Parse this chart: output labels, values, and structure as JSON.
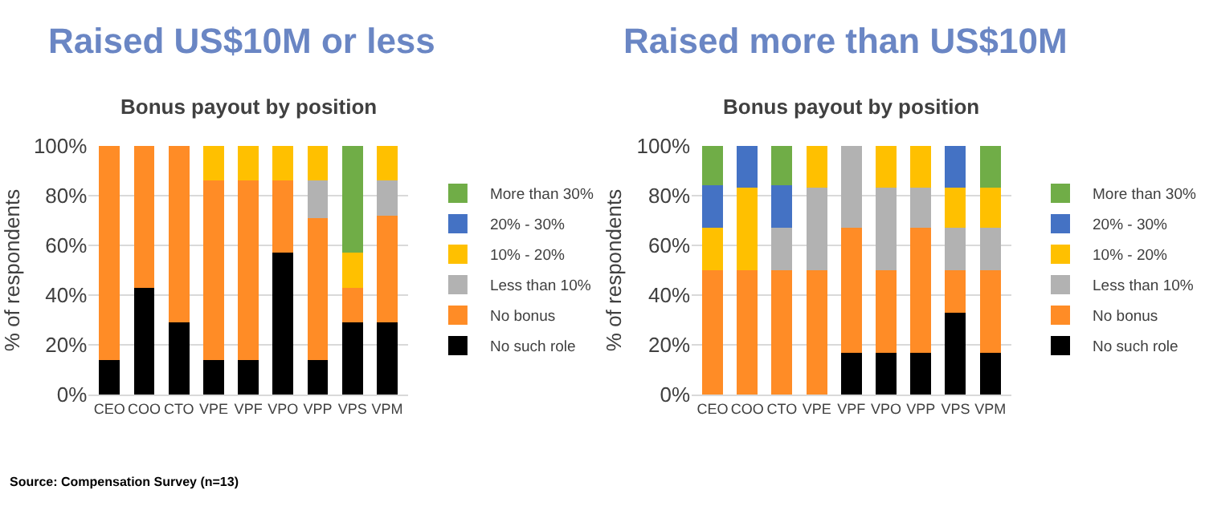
{
  "chart_data": [
    {
      "type": "bar",
      "title": "Raised US$10M or less",
      "subtitle": "Bonus payout by position",
      "ylabel": "% of respondents",
      "stacked": true,
      "legend": "right",
      "grid": "y",
      "categories": [
        "CEO",
        "COO",
        "CTO",
        "VPE",
        "VPF",
        "VPO",
        "VPP",
        "VPS",
        "VPM"
      ],
      "ylim": [
        0,
        100
      ],
      "yticks": [
        {
          "value": 0,
          "label": "0%"
        },
        {
          "value": 20,
          "label": "20%"
        },
        {
          "value": 40,
          "label": "40%"
        },
        {
          "value": 60,
          "label": "60%"
        },
        {
          "value": 80,
          "label": "80%"
        },
        {
          "value": 100,
          "label": "100%"
        }
      ],
      "series": [
        {
          "name": "No such role",
          "color": "#000000",
          "values": [
            14,
            43,
            29,
            14,
            14,
            57,
            14,
            29,
            29
          ]
        },
        {
          "name": "No bonus",
          "color": "#ff8c26",
          "values": [
            86,
            57,
            71,
            72,
            72,
            29,
            57,
            14,
            43
          ]
        },
        {
          "name": "Less than 10%",
          "color": "#b2b2b2",
          "values": [
            0,
            0,
            0,
            0,
            0,
            0,
            15,
            0,
            14
          ]
        },
        {
          "name": "10% - 20%",
          "color": "#ffc000",
          "values": [
            0,
            0,
            0,
            14,
            14,
            14,
            14,
            14,
            14
          ]
        },
        {
          "name": "20% - 30%",
          "color": "#4472c4",
          "values": [
            0,
            0,
            0,
            0,
            0,
            0,
            0,
            0,
            0
          ]
        },
        {
          "name": "More than 30%",
          "color": "#70ad47",
          "values": [
            0,
            0,
            0,
            0,
            0,
            0,
            0,
            43,
            0
          ]
        }
      ],
      "annotations": [
        "Source: Compensation Survey (n=13)"
      ]
    },
    {
      "type": "bar",
      "title": "Raised more than US$10M",
      "subtitle": "Bonus payout by position",
      "ylabel": "% of respondents",
      "stacked": true,
      "legend": "right",
      "grid": "y",
      "categories": [
        "CEO",
        "COO",
        "CTO",
        "VPE",
        "VPF",
        "VPO",
        "VPP",
        "VPS",
        "VPM"
      ],
      "ylim": [
        0,
        100
      ],
      "yticks": [
        {
          "value": 0,
          "label": "0%"
        },
        {
          "value": 20,
          "label": "20%"
        },
        {
          "value": 40,
          "label": "40%"
        },
        {
          "value": 60,
          "label": "60%"
        },
        {
          "value": 80,
          "label": "80%"
        },
        {
          "value": 100,
          "label": "100%"
        }
      ],
      "series": [
        {
          "name": "No such role",
          "color": "#000000",
          "values": [
            0,
            0,
            0,
            0,
            17,
            17,
            17,
            33,
            17
          ]
        },
        {
          "name": "No bonus",
          "color": "#ff8c26",
          "values": [
            50,
            50,
            50,
            50,
            50,
            33,
            50,
            17,
            33
          ]
        },
        {
          "name": "Less than 10%",
          "color": "#b2b2b2",
          "values": [
            0,
            0,
            17,
            33,
            33,
            33,
            16,
            17,
            17
          ]
        },
        {
          "name": "10% - 20%",
          "color": "#ffc000",
          "values": [
            17,
            33,
            0,
            17,
            0,
            17,
            17,
            16,
            16
          ]
        },
        {
          "name": "20% - 30%",
          "color": "#4472c4",
          "values": [
            17,
            17,
            17,
            0,
            0,
            0,
            0,
            17,
            0
          ]
        },
        {
          "name": "More than 30%",
          "color": "#70ad47",
          "values": [
            16,
            0,
            16,
            0,
            0,
            0,
            0,
            0,
            17
          ]
        }
      ]
    }
  ]
}
